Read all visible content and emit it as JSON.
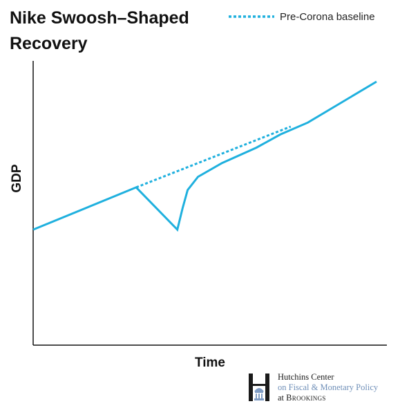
{
  "chart_data": {
    "type": "line",
    "title": "Nike Swoosh–Shaped Recovery",
    "xlabel": "Time",
    "ylabel": "GDP",
    "xlim": [
      0,
      100
    ],
    "ylim": [
      0,
      100
    ],
    "grid": false,
    "ticks": false,
    "legend": {
      "placement": "top-right"
    },
    "series": [
      {
        "name": "",
        "style": "solid",
        "points": [
          [
            0,
            44
          ],
          [
            30,
            60
          ],
          [
            42,
            44
          ],
          [
            43.5,
            52
          ],
          [
            45,
            59
          ],
          [
            48,
            64
          ],
          [
            55,
            69.2
          ],
          [
            65,
            75
          ],
          [
            72,
            80
          ],
          [
            80,
            84.5
          ],
          [
            100,
            100
          ]
        ]
      },
      {
        "name": "Pre-Corona baseline",
        "style": "dotted",
        "points": [
          [
            30,
            60
          ],
          [
            75,
            83
          ]
        ]
      }
    ],
    "colors": {
      "line": "#1fb0de",
      "axis": "#111111"
    }
  },
  "legend": {
    "label": "Pre-Corona baseline"
  },
  "credit": {
    "line1": "Hutchins Center",
    "line2": "on Fiscal & Monetary Policy",
    "line3_prefix": "at ",
    "line3_org": "Brookings"
  }
}
